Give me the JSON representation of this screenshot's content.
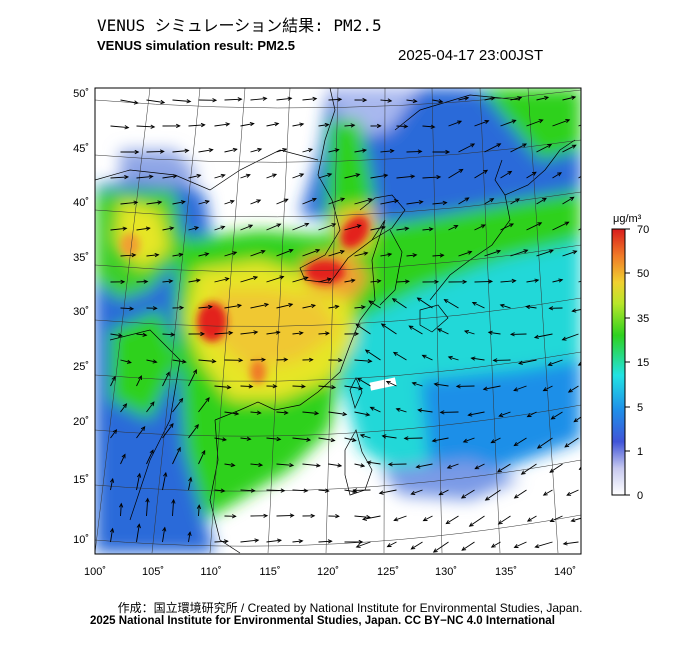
{
  "header": {
    "title_jp": "VENUS シミュレーション結果: PM2.5",
    "title_en": "VENUS simulation result: PM2.5",
    "timestamp": "2025-04-17 23:00JST"
  },
  "map": {
    "lat_ticks": [
      "50˚",
      "45˚",
      "40˚",
      "35˚",
      "30˚",
      "25˚",
      "20˚",
      "15˚",
      "10˚"
    ],
    "lon_ticks": [
      "100˚",
      "105˚",
      "110˚",
      "115˚",
      "120˚",
      "125˚",
      "130˚",
      "135˚",
      "140˚"
    ],
    "lon_range": [
      100,
      142
    ],
    "lat_range": [
      9,
      51
    ]
  },
  "colorbar": {
    "unit": "μg/m³",
    "tick_labels": [
      "70",
      "50",
      "35",
      "15",
      "5",
      "1",
      "0"
    ]
  },
  "colors": {
    "blue": "#2b6bd9",
    "cyan": "#22e3e3",
    "green": "#2ed11f",
    "yellow": "#e6e628",
    "orange": "#f0a030",
    "red": "#e3231c"
  },
  "footer": {
    "credit": "作成：国立環境研究所 / Created by National Institute for Environmental Studies, Japan.",
    "copyright": "2025 National Institute for Environmental Studies, Japan. CC BY−NC 4.0 International"
  }
}
